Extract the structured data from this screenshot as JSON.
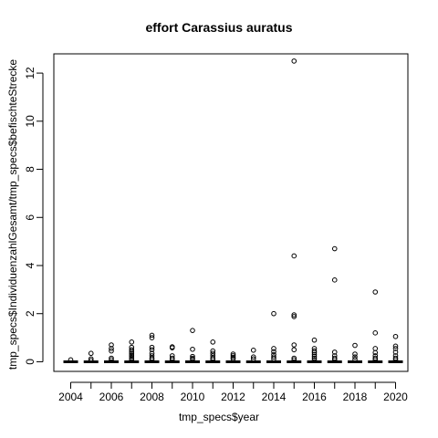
{
  "chart_data": {
    "type": "boxplot",
    "title": "effort Carassius auratus",
    "xlabel": "tmp_specs$year",
    "ylabel": "tmp_specs$IndividuenzahlGesamt/tmp_specs$befischteStrecke",
    "categories": [
      2004,
      2005,
      2006,
      2007,
      2008,
      2009,
      2010,
      2011,
      2012,
      2013,
      2014,
      2015,
      2016,
      2017,
      2018,
      2019,
      2020
    ],
    "x_tick_labels": [
      "2004",
      "2006",
      "2008",
      "2010",
      "2012",
      "2014",
      "2016",
      "2018",
      "2020"
    ],
    "y_ticks": [
      0,
      2,
      4,
      6,
      8,
      10,
      12
    ],
    "ylim": [
      -0.4,
      12.8
    ],
    "grid": false,
    "boxes": [
      {
        "year": 2004,
        "median": 0,
        "outliers": [
          0.08
        ]
      },
      {
        "year": 2005,
        "median": 0,
        "outliers": [
          0.35,
          0.12,
          0.05
        ]
      },
      {
        "year": 2006,
        "median": 0,
        "outliers": [
          0.7,
          0.55,
          0.45,
          0.15,
          0.08
        ]
      },
      {
        "year": 2007,
        "median": 0,
        "outliers": [
          0.82,
          0.6,
          0.5,
          0.42,
          0.35,
          0.28,
          0.22,
          0.15,
          0.08
        ]
      },
      {
        "year": 2008,
        "median": 0,
        "outliers": [
          1.1,
          1.0,
          0.6,
          0.5,
          0.35,
          0.25,
          0.15,
          0.08
        ]
      },
      {
        "year": 2009,
        "median": 0,
        "outliers": [
          0.62,
          0.58,
          0.25,
          0.15,
          0.08
        ]
      },
      {
        "year": 2010,
        "median": 0,
        "outliers": [
          1.3,
          0.52,
          0.22,
          0.15,
          0.1
        ]
      },
      {
        "year": 2011,
        "median": 0,
        "outliers": [
          0.82,
          0.45,
          0.35,
          0.25,
          0.15,
          0.08
        ]
      },
      {
        "year": 2012,
        "median": 0,
        "outliers": [
          0.32,
          0.25,
          0.18,
          0.12
        ]
      },
      {
        "year": 2013,
        "median": 0,
        "outliers": [
          0.48,
          0.2,
          0.12
        ]
      },
      {
        "year": 2014,
        "median": 0,
        "outliers": [
          2.0,
          0.55,
          0.42,
          0.3,
          0.2,
          0.12
        ]
      },
      {
        "year": 2015,
        "median": 0,
        "outliers": [
          12.5,
          4.4,
          1.95,
          1.88,
          0.7,
          0.5,
          0.15,
          0.08
        ]
      },
      {
        "year": 2016,
        "median": 0,
        "outliers": [
          0.9,
          0.55,
          0.45,
          0.38,
          0.3,
          0.22,
          0.15,
          0.08
        ]
      },
      {
        "year": 2017,
        "median": 0,
        "outliers": [
          4.7,
          3.4,
          0.4,
          0.25,
          0.15,
          0.08
        ]
      },
      {
        "year": 2018,
        "median": 0,
        "outliers": [
          0.68,
          0.32,
          0.2,
          0.1
        ]
      },
      {
        "year": 2019,
        "median": 0,
        "outliers": [
          2.9,
          1.2,
          0.55,
          0.38,
          0.25,
          0.15,
          0.08
        ]
      },
      {
        "year": 2020,
        "median": 0,
        "outliers": [
          1.05,
          0.65,
          0.55,
          0.4,
          0.25,
          0.15,
          0.08
        ]
      }
    ]
  }
}
